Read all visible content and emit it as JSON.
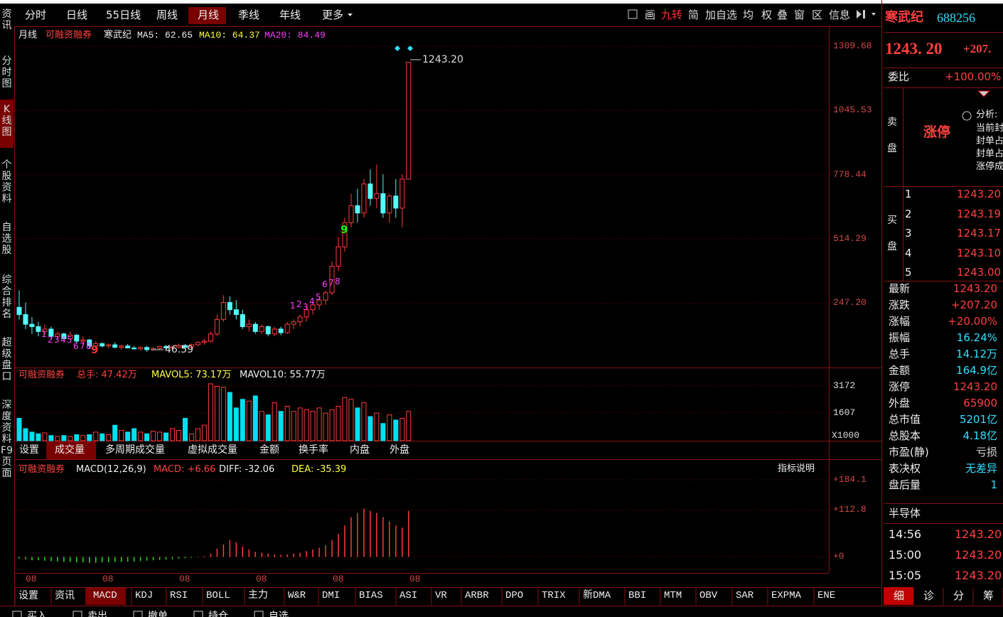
{
  "left_sidebar": [
    "资讯",
    "分时图",
    "K线图",
    "个股资料",
    "自选股",
    "综合排名",
    "超级盘口",
    "深度资料F9页面"
  ],
  "top_tabs": [
    "分时",
    "日线",
    "55日线",
    "周线",
    "月线",
    "季线",
    "年线",
    "更多"
  ],
  "toolbar": [
    "画",
    "九转",
    "简",
    "加自选",
    "均",
    "权",
    "叠",
    "窗",
    "区",
    "信息"
  ],
  "kline": {
    "period": "月线",
    "margin": "可融资融券",
    "stock": "寒武纪",
    "ma": [
      "MA5: 62.65",
      "MA10: 64.37",
      "MA20: 84.49"
    ],
    "ylim": [
      -13,
      1383
    ],
    "yticks": [
      1309.68,
      1045.53,
      778.44,
      514.29,
      {
        "value": 247.2,
        "label": "247.20"
      }
    ],
    "high_label": "1243.20",
    "low_label": "46.59",
    "td_counts": [
      [
        "1",
        "2",
        "3",
        "4",
        "5",
        "6",
        "7",
        "8",
        "9"
      ],
      [
        "1",
        "2",
        "3",
        "4",
        "5",
        "6",
        "7",
        "8",
        "9"
      ]
    ],
    "candles": {
      "open": [
        230,
        200,
        160,
        150,
        130,
        140,
        110,
        120,
        100,
        115,
        90,
        95,
        70,
        80,
        70,
        75,
        65,
        70,
        62,
        58,
        64,
        55,
        60,
        68,
        62,
        66,
        72,
        65,
        75,
        85,
        90,
        120,
        180,
        250,
        220,
        200,
        150,
        160,
        130,
        150,
        120,
        140,
        125,
        160,
        170,
        190,
        220,
        240,
        260,
        290,
        400,
        480,
        580,
        650,
        620,
        740,
        680,
        700,
        620,
        690,
        640,
        760
      ],
      "high": [
        300,
        250,
        190,
        170,
        160,
        150,
        130,
        125,
        130,
        120,
        110,
        100,
        90,
        85,
        80,
        85,
        75,
        78,
        70,
        68,
        70,
        65,
        72,
        75,
        70,
        80,
        78,
        80,
        90,
        100,
        130,
        200,
        280,
        275,
        260,
        220,
        180,
        170,
        160,
        155,
        150,
        150,
        170,
        180,
        200,
        230,
        260,
        270,
        300,
        420,
        520,
        600,
        700,
        720,
        760,
        800,
        820,
        780,
        700,
        760,
        780,
        1243.2
      ],
      "low": [
        180,
        140,
        120,
        110,
        115,
        100,
        95,
        90,
        95,
        80,
        75,
        60,
        60,
        65,
        60,
        60,
        55,
        60,
        55,
        52,
        46.59,
        50,
        55,
        58,
        55,
        60,
        62,
        60,
        70,
        75,
        85,
        110,
        170,
        200,
        180,
        140,
        130,
        120,
        120,
        110,
        110,
        115,
        120,
        140,
        150,
        170,
        200,
        220,
        240,
        280,
        380,
        460,
        560,
        580,
        600,
        650,
        640,
        600,
        580,
        600,
        560,
        760
      ],
      "close": [
        200,
        160,
        150,
        130,
        140,
        110,
        120,
        100,
        115,
        90,
        95,
        70,
        80,
        70,
        75,
        65,
        70,
        62,
        58,
        64,
        55,
        60,
        68,
        62,
        66,
        72,
        65,
        75,
        85,
        90,
        120,
        180,
        250,
        220,
        200,
        150,
        160,
        130,
        150,
        120,
        140,
        125,
        160,
        170,
        190,
        220,
        240,
        260,
        290,
        400,
        480,
        580,
        650,
        620,
        740,
        680,
        700,
        620,
        690,
        640,
        760,
        1243.2
      ]
    }
  },
  "volume": {
    "header": [
      "可融资融券",
      "总手: 47.42万",
      "MAVOL5: 73.17万",
      "MAVOL10: 55.77万"
    ],
    "ylim": [
      0,
      4120
    ],
    "yticks": [
      1607,
      3172
    ],
    "unit": "X1000",
    "values": [
      1300,
      700,
      500,
      400,
      450,
      300,
      250,
      300,
      250,
      350,
      300,
      350,
      500,
      400,
      350,
      900,
      600,
      500,
      700,
      500,
      400,
      550,
      500,
      450,
      700,
      600,
      1300,
      400,
      700,
      900,
      3300,
      3150,
      3100,
      2800,
      1900,
      2400,
      2300,
      2600,
      1700,
      1500,
      2200,
      1700,
      2000,
      1700,
      1900,
      1800,
      1700,
      1900,
      1600,
      1800,
      2000,
      2500,
      2400,
      1900,
      2200,
      1400,
      1600,
      1000,
      1500,
      1200,
      1300,
      1700
    ]
  },
  "volume_tabs": [
    "设置",
    "成交量",
    "多周期成交量",
    "虚拟成交量",
    "金额",
    "换手率",
    "内盘",
    "外盘"
  ],
  "macd": {
    "header": [
      "可融资融券",
      "MACD(12,26,9)",
      "MACD: +6.66",
      "DIFF: -32.06",
      "DEA: -35.39"
    ],
    "help": "指标说明",
    "ylim": [
      -36.5,
      196
    ],
    "yticks": [
      {
        "value": 184.1,
        "label": "+184.1"
      },
      {
        "value": 112.8,
        "label": "+112.8"
      },
      {
        "value": 0,
        "label": "+0"
      }
    ],
    "values": [
      -4,
      -6,
      -8,
      -8,
      -9,
      -10,
      -11,
      -12,
      -12,
      -13,
      -13,
      -14,
      -14,
      -13,
      -13,
      -12,
      -12,
      -11,
      -11,
      -10,
      -9,
      -8,
      -7,
      -6,
      -5,
      -4,
      -3,
      -2,
      -1,
      2,
      8,
      20,
      30,
      40,
      35,
      25,
      18,
      12,
      10,
      8,
      6,
      5,
      6,
      8,
      10,
      14,
      18,
      22,
      28,
      40,
      55,
      75,
      95,
      105,
      115,
      110,
      105,
      95,
      85,
      75,
      70,
      110
    ]
  },
  "x_labels": [
    "08",
    "08",
    "08",
    "08",
    "08",
    "08"
  ],
  "indicator_tabs": [
    "设置",
    "资讯",
    "MACD",
    "KDJ",
    "RSI",
    "BOLL",
    "主力",
    "W&R",
    "DMI",
    "BIAS",
    "ASI",
    "VR",
    "ARBR",
    "DPO",
    "TRIX",
    "新DMA",
    "BBI",
    "MTM",
    "OBV",
    "SAR",
    "EXPMA",
    "ENE"
  ],
  "quote": {
    "name": "寒武纪",
    "code": "688256",
    "price": "1243. 20",
    "change": "+207.",
    "ratio_label": "委比",
    "ratio": "+100.00%",
    "sell_label": [
      "卖",
      "盘"
    ],
    "sell_status": "涨停",
    "analysis": [
      "分析:",
      "当前封",
      "封单占",
      "封单占",
      "涨停成"
    ],
    "buy_label": [
      "买",
      "盘"
    ],
    "buy": [
      [
        "1",
        "1243.20"
      ],
      [
        "2",
        "1243.19"
      ],
      [
        "3",
        "1243.17"
      ],
      [
        "4",
        "1243.10"
      ],
      [
        "5",
        "1243.00"
      ]
    ],
    "stats": [
      [
        "最新",
        "1243.20",
        "#ff4040"
      ],
      [
        "涨跌",
        "+207.20",
        "#ff4040"
      ],
      [
        "涨幅",
        "+20.00%",
        "#ff4040"
      ],
      [
        "振幅",
        "16.24%",
        "#30e0ff"
      ],
      [
        "总手",
        "14.12万",
        "#30e0ff"
      ],
      [
        "金额",
        "164.9亿",
        "#30e0ff"
      ],
      [
        "涨停",
        "1243.20",
        "#ff4040"
      ],
      [
        "外盘",
        "65900",
        "#ff4040"
      ],
      [
        "总市值",
        "5201亿",
        "#30e0ff"
      ],
      [
        "总股本",
        "4.18亿",
        "#30e0ff"
      ],
      [
        "市盈(静)",
        "亏损",
        "#dddddd"
      ],
      [
        "表决权",
        "无差异",
        "#30e0ff"
      ],
      [
        "盘后量",
        "1",
        "#30e0ff"
      ]
    ],
    "sector": "半导体",
    "ticks": [
      [
        "14:56",
        "1243.20"
      ],
      [
        "15:00",
        "1243.20"
      ],
      [
        "15:05",
        "1243.20"
      ]
    ],
    "tabs": [
      "细",
      "诊",
      "分",
      "筹"
    ]
  },
  "trade_bar": [
    "买入",
    "卖出",
    "撤单",
    "持仓",
    "自选"
  ]
}
